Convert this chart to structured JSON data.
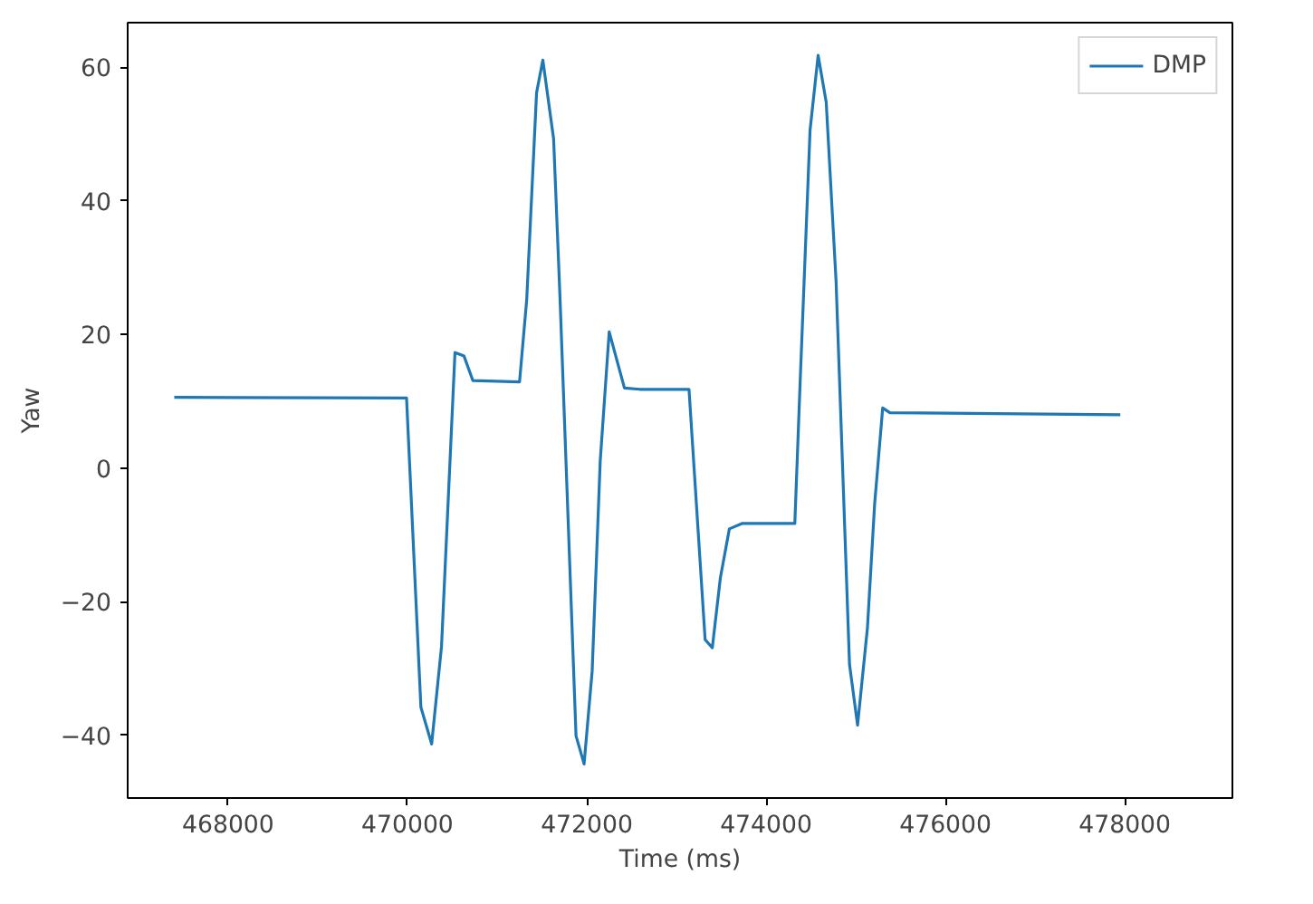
{
  "chart_data": {
    "type": "line",
    "xlabel": "Time (ms)",
    "ylabel": "Yaw",
    "xlim": [
      466880,
      479200
    ],
    "ylim": [
      -49.4,
      66.7
    ],
    "xticks": [
      468000,
      470000,
      472000,
      474000,
      476000,
      478000
    ],
    "yticks": [
      -40,
      -20,
      0,
      20,
      40,
      60
    ],
    "grid": false,
    "legend": "top right",
    "x": [
      467400,
      469990,
      470150,
      470270,
      470380,
      470530,
      470630,
      470730,
      471250,
      471330,
      471440,
      471510,
      471630,
      471700,
      471880,
      471970,
      472060,
      472150,
      472250,
      472420,
      472590,
      473140,
      473320,
      473400,
      473490,
      473590,
      473730,
      474320,
      474380,
      474490,
      474580,
      474670,
      474780,
      474930,
      475020,
      475130,
      475210,
      475300,
      475380,
      477950
    ],
    "series": [
      {
        "name": "DMP",
        "color": "#1f77b4",
        "values": [
          10.6,
          10.5,
          -35.8,
          -41.3,
          -26.7,
          17.3,
          16.8,
          13.1,
          12.9,
          25.2,
          56.2,
          61.1,
          49.3,
          26,
          -40.1,
          -44.3,
          -30.4,
          1.1,
          20.4,
          12.0,
          11.8,
          11.8,
          -25.7,
          -26.9,
          -16.4,
          -9.1,
          -8.3,
          -8.3,
          13.1,
          50.6,
          61.8,
          54.8,
          28,
          -29.4,
          -38.5,
          -23.9,
          -5.4,
          9.0,
          8.3,
          8.0
        ]
      }
    ]
  }
}
